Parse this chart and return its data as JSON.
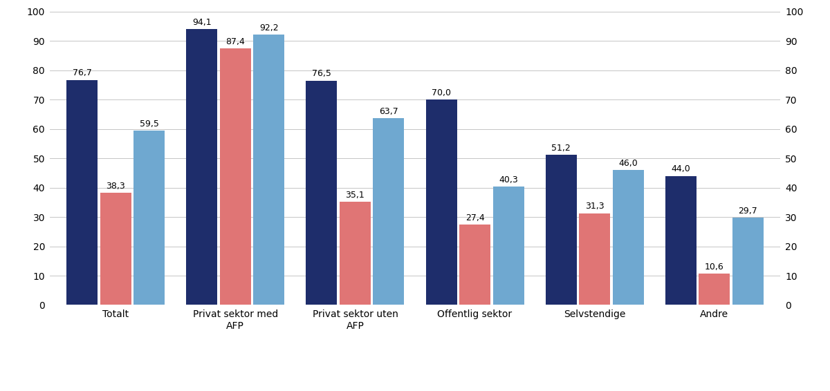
{
  "categories": [
    "Totalt",
    "Privat sektor med\nAFP",
    "Privat sektor uten\nAFP",
    "Offentlig sektor",
    "Selvstendige",
    "Andre"
  ],
  "series": {
    "Menn": [
      76.7,
      94.1,
      76.5,
      70.0,
      51.2,
      44.0
    ],
    "Kvinner": [
      38.3,
      87.4,
      35.1,
      27.4,
      31.3,
      10.6
    ],
    "Totalt": [
      59.5,
      92.2,
      63.7,
      40.3,
      46.0,
      29.7
    ]
  },
  "colors": {
    "Menn": "#1e2d6b",
    "Kvinner": "#e07575",
    "Totalt": "#6fa8d0"
  },
  "ylim": [
    0,
    100
  ],
  "yticks": [
    0,
    10,
    20,
    30,
    40,
    50,
    60,
    70,
    80,
    90,
    100
  ],
  "bar_width": 0.26,
  "value_fontsize": 9,
  "tick_fontsize": 10,
  "legend_fontsize": 11,
  "background_color": "#ffffff",
  "grid_color": "#bbbbbb",
  "grid_linewidth": 0.6
}
